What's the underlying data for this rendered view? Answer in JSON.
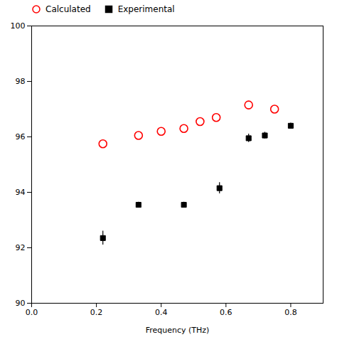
{
  "chart_data": {
    "type": "scatter",
    "xlabel": "Frequency (THz)",
    "xlim": [
      0.0,
      0.9
    ],
    "ylim": [
      90,
      100
    ],
    "xticks": [
      {
        "value": 0.0,
        "label": "0.0"
      },
      {
        "value": 0.2,
        "label": "0.2"
      },
      {
        "value": 0.4,
        "label": "0.4"
      },
      {
        "value": 0.6,
        "label": "0.6"
      },
      {
        "value": 0.8,
        "label": "0.8"
      }
    ],
    "yticks": [
      90,
      92,
      94,
      96,
      98,
      100
    ],
    "grid": false,
    "legend": "upper left",
    "series": [
      {
        "name": "Calculated",
        "color": "#ff0000",
        "marker": "open_circle",
        "x": [
          0.22,
          0.33,
          0.4,
          0.47,
          0.52,
          0.57,
          0.67,
          0.75
        ],
        "values": [
          95.75,
          96.05,
          96.2,
          96.3,
          96.55,
          96.7,
          97.15,
          97.0
        ]
      },
      {
        "name": "Experimental",
        "color": "#000000",
        "marker": "filled_square",
        "x": [
          0.22,
          0.33,
          0.47,
          0.58,
          0.67,
          0.72,
          0.8
        ],
        "values": [
          92.35,
          93.55,
          93.55,
          94.15,
          95.95,
          96.05,
          96.4
        ],
        "errors": [
          0.25,
          0.1,
          0.1,
          0.2,
          0.15,
          0.12,
          0.1
        ]
      }
    ]
  }
}
